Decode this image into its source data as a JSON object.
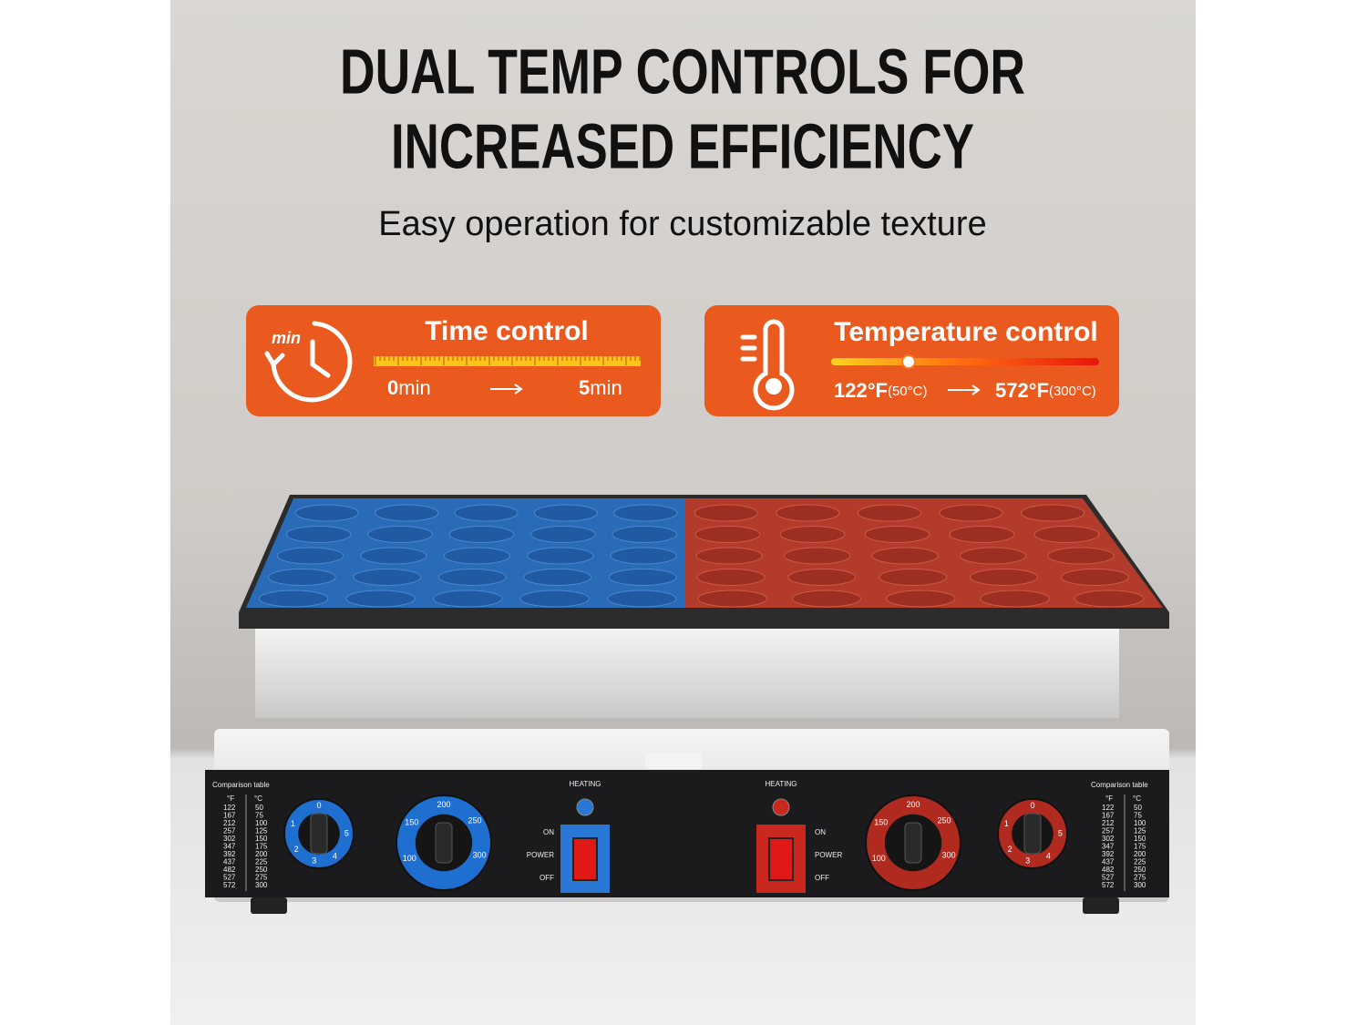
{
  "headline": [
    "DUAL TEMP CONTROLS FOR",
    "INCREASED EFFICIENCY"
  ],
  "subtitle": "Easy operation for customizable texture",
  "time_control": {
    "title": "Time control",
    "icon_label": "min",
    "start": "0",
    "start_unit": "min",
    "end": "5",
    "end_unit": "min"
  },
  "temperature_control": {
    "title": "Temperature control",
    "start": "122°F",
    "start_note": "(50°C)",
    "end": "572°F",
    "end_note": "(300°C)"
  },
  "panel": {
    "comparison_table": {
      "title": "Comparison table",
      "headers": [
        "°F",
        "°C"
      ],
      "rows": [
        [
          "122",
          "50"
        ],
        [
          "167",
          "75"
        ],
        [
          "212",
          "100"
        ],
        [
          "257",
          "125"
        ],
        [
          "302",
          "150"
        ],
        [
          "347",
          "175"
        ],
        [
          "392",
          "200"
        ],
        [
          "437",
          "225"
        ],
        [
          "482",
          "250"
        ],
        [
          "527",
          "275"
        ],
        [
          "572",
          "300"
        ]
      ]
    },
    "heating": "HEATING",
    "switch_labels": [
      "ON",
      "POWER",
      "OFF"
    ],
    "timer_dial": [
      "0",
      "1",
      "2",
      "3",
      "4",
      "5"
    ],
    "temp_dial": [
      "100",
      "150",
      "200",
      "250",
      "300"
    ]
  }
}
